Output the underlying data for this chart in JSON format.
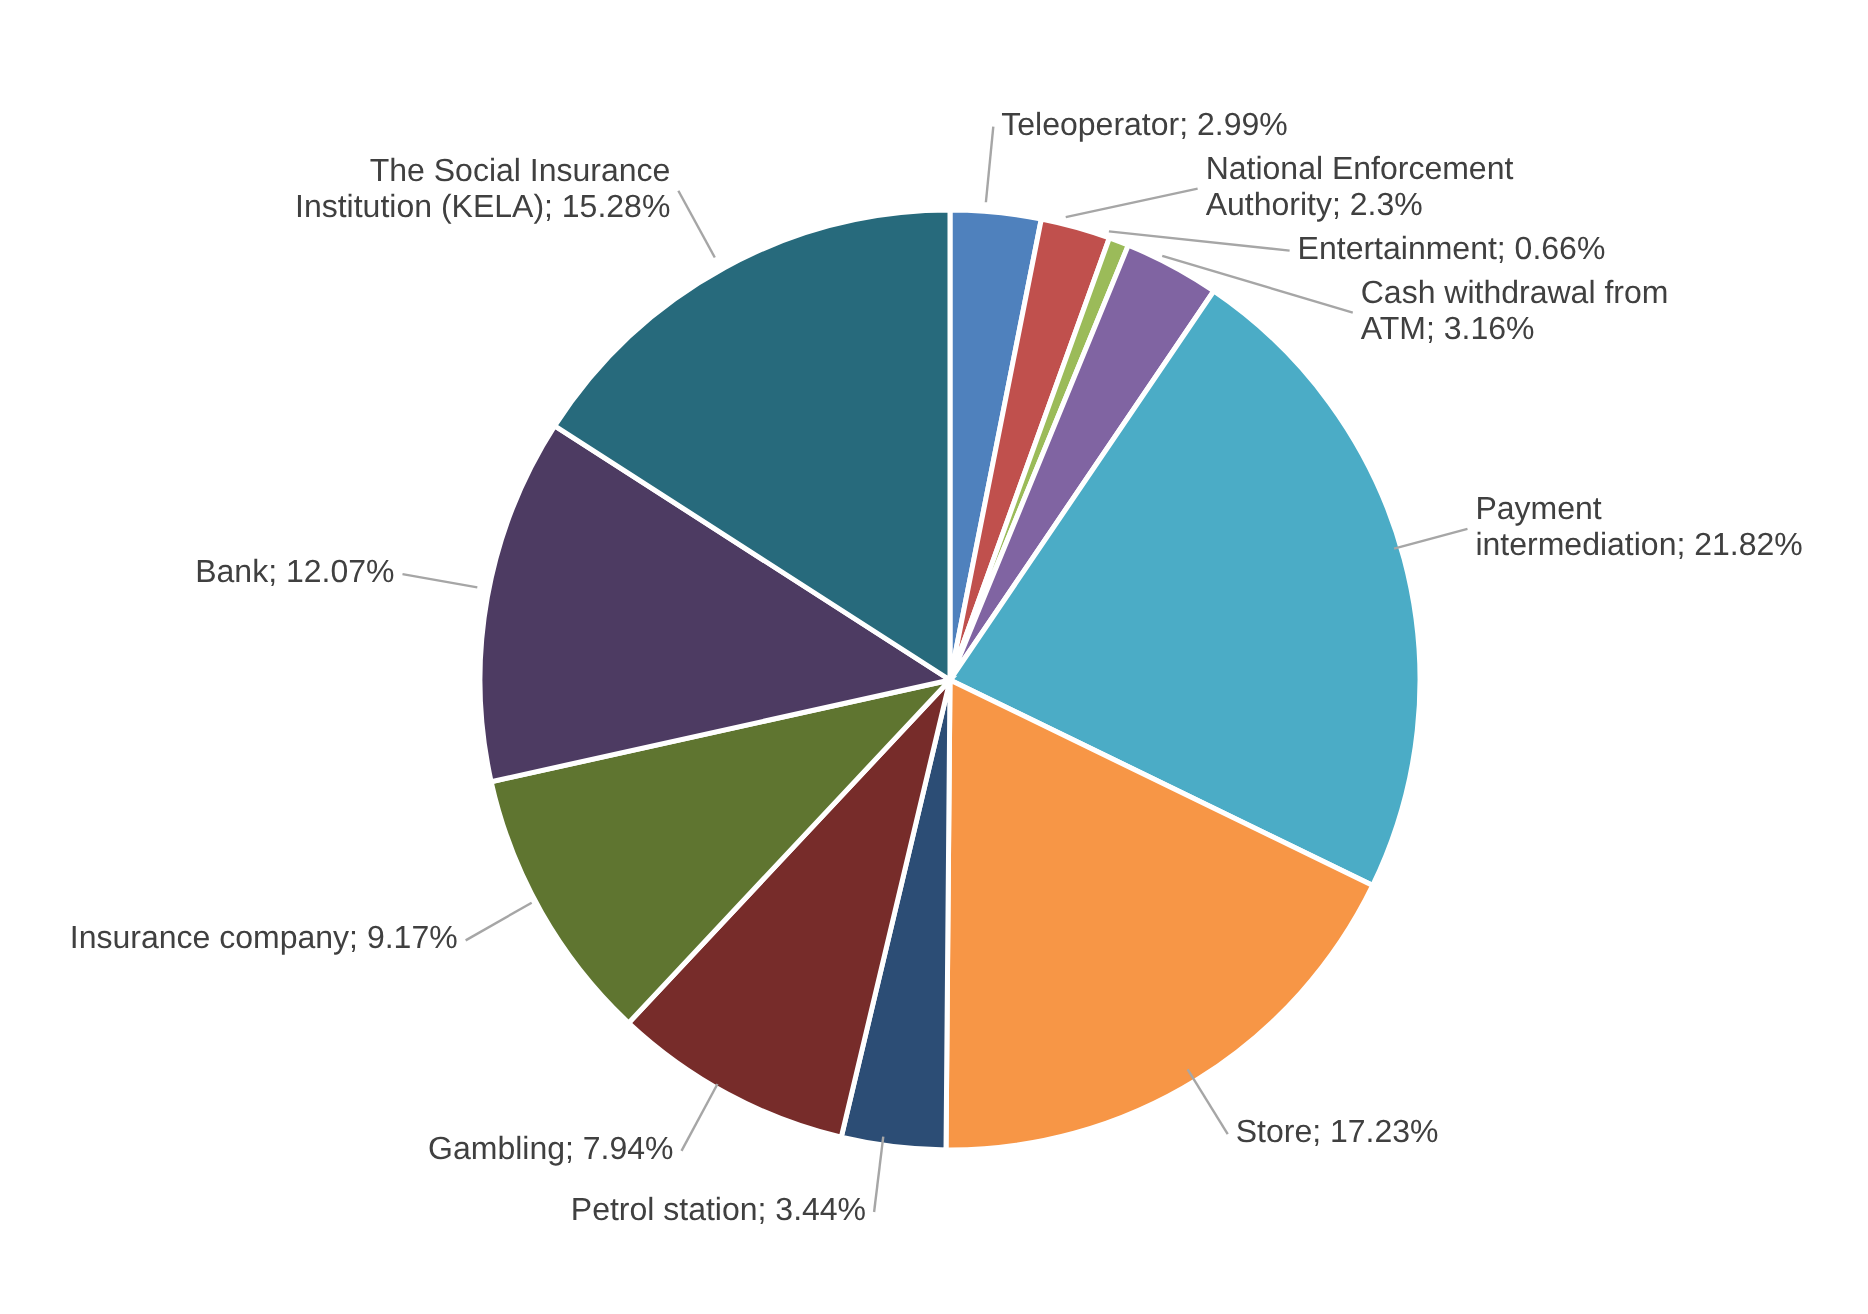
{
  "chart_data": {
    "type": "pie",
    "categories": [
      "Teleoperator",
      "National Enforcement Authority",
      "Entertainment",
      "Cash withdrawal from ATM",
      "Payment intermediation",
      "Store",
      "Petrol station",
      "Gambling",
      "Insurance company",
      "Bank",
      "The Social Insurance Institution (KELA)"
    ],
    "values": [
      2.99,
      2.3,
      0.66,
      3.16,
      21.82,
      17.23,
      3.44,
      7.94,
      9.17,
      12.07,
      15.28
    ],
    "value_labels": [
      "2.99%",
      "2.3%",
      "0.66%",
      "3.16%",
      "21.82%",
      "17.23%",
      "3.44%",
      "7.94%",
      "9.17%",
      "12.07%",
      "15.28%"
    ],
    "colors": [
      "#4f81bd",
      "#c0504d",
      "#9bbb59",
      "#8064a2",
      "#4bacc6",
      "#f79646",
      "#2c4d75",
      "#772c2a",
      "#5f7530",
      "#4d3b62",
      "#276a7c"
    ],
    "legend": false
  }
}
